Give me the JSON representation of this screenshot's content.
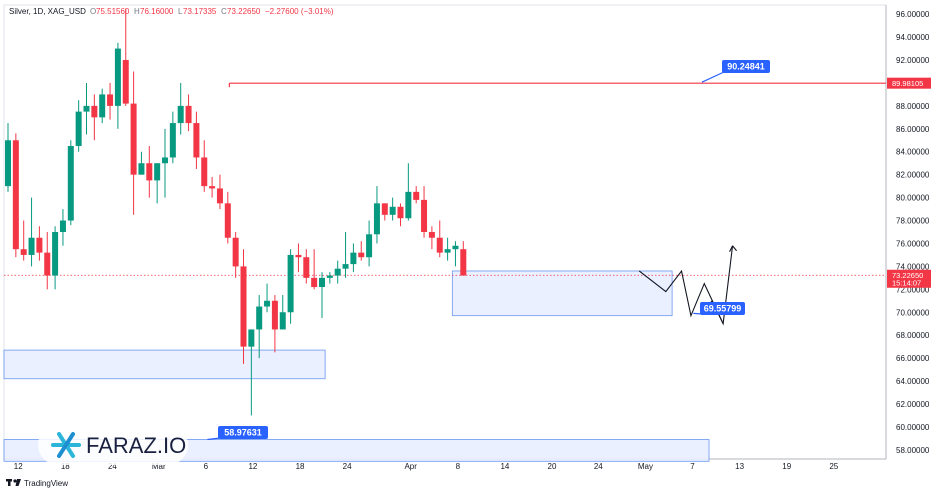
{
  "header": {
    "symbol": "Silver, 1D, XAG_USD",
    "o_label": "O",
    "o_value": "75.51560",
    "h_label": "H",
    "h_value": "76.16000",
    "l_label": "L",
    "l_value": "73.17335",
    "c_label": "C",
    "c_value": "73.22650",
    "change": "−2.27600 (−3.01%)"
  },
  "footer": {
    "brand": "TradingView"
  },
  "watermark": {
    "text": "FARAZ.IO"
  },
  "colors": {
    "up": "#089981",
    "down": "#f23645",
    "zone_fill": "#e8efff",
    "zone_stroke": "#5b8def",
    "callout": "#2962ff"
  },
  "chart_data": {
    "type": "candlestick",
    "yrange": [
      57.2,
      96.8
    ],
    "y_ticks": [
      "96.00000",
      "94.00000",
      "92.00000",
      "90.00000",
      "88.00000",
      "86.00000",
      "84.00000",
      "82.00000",
      "80.00000",
      "78.00000",
      "76.00000",
      "74.00000",
      "72.00000",
      "70.00000",
      "68.00000",
      "66.00000",
      "64.00000",
      "62.00000",
      "60.00000",
      "58.00000"
    ],
    "x_ticks": [
      "12",
      "18",
      "24",
      "Mar",
      "6",
      "12",
      "18",
      "24",
      "Apr",
      "8",
      "14",
      "20",
      "24",
      "May",
      "7",
      "13",
      "19",
      "25"
    ],
    "last_price": {
      "value": "73.22650",
      "countdown": "15:14:07"
    },
    "levels": [
      {
        "label": "89.98105",
        "value": 89.98105
      }
    ],
    "callouts": [
      {
        "label": "90.24841"
      },
      {
        "label": "69.55799"
      },
      {
        "label": "58.97631"
      }
    ],
    "zones": [
      {
        "top": 66.7,
        "bottom": 64.2
      },
      {
        "top": 73.6,
        "bottom": 69.7
      },
      {
        "top": 58.9,
        "bottom": 57.0
      }
    ],
    "candles": [
      [
        81.0,
        86.5,
        80.5,
        85.0
      ],
      [
        85.0,
        85.6,
        74.8,
        75.5
      ],
      [
        75.5,
        78.0,
        74.5,
        75.0
      ],
      [
        75.0,
        80.0,
        74.0,
        76.5
      ],
      [
        76.5,
        77.5,
        74.5,
        75.2
      ],
      [
        75.2,
        77.0,
        72.0,
        73.2
      ],
      [
        73.2,
        77.5,
        72.0,
        77.0
      ],
      [
        77.0,
        79.0,
        75.8,
        78.0
      ],
      [
        78.0,
        85.0,
        77.6,
        84.5
      ],
      [
        84.5,
        88.5,
        84.0,
        87.5
      ],
      [
        87.5,
        90.0,
        85.5,
        88.0
      ],
      [
        88.0,
        89.0,
        85.0,
        87.0
      ],
      [
        87.0,
        89.5,
        86.5,
        89.0
      ],
      [
        89.0,
        90.0,
        86.8,
        88.0
      ],
      [
        88.0,
        93.5,
        86.0,
        93.0
      ],
      [
        92.0,
        96.5,
        88.0,
        88.2
      ],
      [
        88.2,
        91.0,
        78.5,
        82.0
      ],
      [
        82.0,
        84.0,
        82.0,
        83.0
      ],
      [
        83.0,
        84.5,
        80.0,
        81.5
      ],
      [
        81.5,
        83.0,
        79.5,
        83.0
      ],
      [
        83.0,
        86.0,
        80.0,
        83.5
      ],
      [
        83.5,
        87.5,
        83.0,
        86.5
      ],
      [
        86.5,
        90.0,
        85.5,
        88.0
      ],
      [
        88.0,
        89.0,
        85.8,
        86.5
      ],
      [
        86.5,
        87.5,
        82.5,
        83.5
      ],
      [
        83.5,
        85.0,
        80.5,
        81.0
      ],
      [
        81.0,
        81.8,
        80.0,
        80.8
      ],
      [
        80.8,
        82.0,
        79.0,
        79.5
      ],
      [
        79.5,
        80.5,
        76.0,
        76.5
      ],
      [
        76.5,
        77.0,
        73.0,
        74.0
      ],
      [
        74.0,
        75.5,
        65.5,
        67.0
      ],
      [
        67.0,
        68.5,
        61.0,
        68.5
      ],
      [
        68.5,
        71.5,
        66.0,
        70.5
      ],
      [
        70.5,
        72.5,
        70.0,
        71.0
      ],
      [
        71.0,
        71.5,
        66.5,
        68.5
      ],
      [
        68.5,
        71.5,
        68.5,
        70.0
      ],
      [
        70.0,
        75.5,
        69.0,
        75.0
      ],
      [
        75.0,
        76.0,
        73.5,
        74.8
      ],
      [
        74.8,
        75.5,
        72.5,
        73.0
      ],
      [
        73.0,
        75.5,
        72.0,
        72.2
      ],
      [
        72.2,
        73.5,
        69.5,
        73.0
      ],
      [
        73.0,
        73.5,
        72.5,
        73.2
      ],
      [
        73.2,
        74.5,
        72.5,
        73.8
      ],
      [
        73.8,
        77.0,
        73.0,
        74.2
      ],
      [
        74.2,
        76.0,
        73.5,
        75.2
      ],
      [
        75.2,
        76.2,
        74.5,
        74.8
      ],
      [
        74.8,
        78.0,
        74.0,
        76.8
      ],
      [
        76.8,
        81.0,
        76.0,
        79.5
      ],
      [
        79.5,
        79.5,
        78.0,
        78.5
      ],
      [
        78.5,
        80.0,
        78.0,
        79.2
      ],
      [
        79.2,
        79.5,
        77.5,
        78.2
      ],
      [
        78.2,
        83.0,
        78.0,
        80.5
      ],
      [
        80.5,
        81.0,
        79.5,
        79.8
      ],
      [
        79.8,
        81.0,
        76.5,
        77.0
      ],
      [
        77.0,
        77.5,
        75.5,
        76.5
      ],
      [
        76.5,
        78.0,
        74.8,
        75.2
      ],
      [
        75.2,
        76.5,
        74.5,
        75.5
      ],
      [
        75.5,
        76.2,
        74.0,
        75.8
      ],
      [
        75.5,
        76.2,
        73.2,
        73.2
      ]
    ],
    "projection": [
      [
        74.0,
        69.6
      ],
      [
        71.8,
        69.2
      ],
      [
        73.6,
        70.3
      ],
      [
        64.8,
        68.7
      ],
      [
        75.8,
        75.8
      ]
    ]
  }
}
